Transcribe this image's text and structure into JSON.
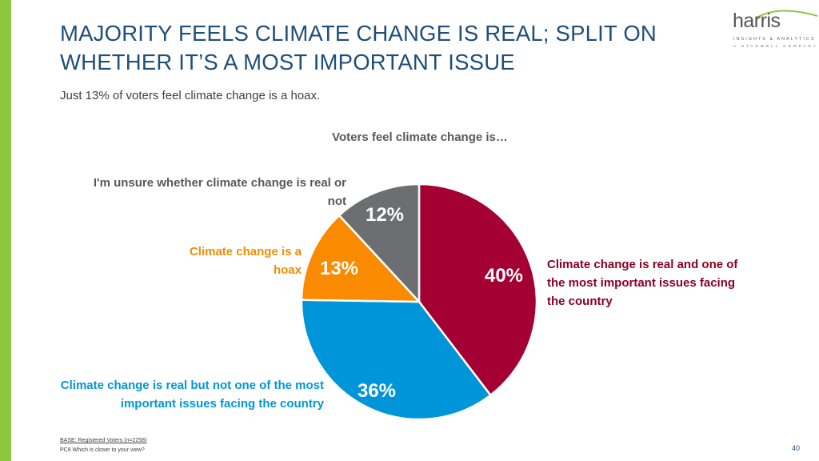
{
  "slide": {
    "title": "MAJORITY FEELS CLIMATE CHANGE IS REAL; SPLIT ON WHETHER IT’S A MOST IMPORTANT ISSUE",
    "subtitle": "Just 13% of voters feel climate change is a hoax.",
    "page_number": "40"
  },
  "logo": {
    "brand": "harris",
    "line1": "INSIGHTS & ANALYTICS",
    "line2": "A STAGWELL COMPANY"
  },
  "footnote": {
    "base": "BASE: Registered Voters (n=2258)",
    "question": "PC8 Which is closer to your view?"
  },
  "colors": {
    "accent_green": "#8dc63f",
    "title_blue": "#1f4e79"
  },
  "chart_data": {
    "type": "pie",
    "title": "Voters feel climate change is…",
    "slices": [
      {
        "label": "Climate change is real and one of the most important issues facing the country",
        "value": 40,
        "value_label": "40%",
        "color": "#a50034",
        "label_color": "#8b0023"
      },
      {
        "label": "Climate change is real but not one of the most important issues facing the country",
        "value": 36,
        "value_label": "36%",
        "color": "#0095d9",
        "label_color": "#0097d7"
      },
      {
        "label": "Climate change is a hoax",
        "value": 13,
        "value_label": "13%",
        "color": "#fa8a00",
        "label_color": "#f28c00"
      },
      {
        "label": "I'm unsure whether climate change is real or not",
        "value": 12,
        "value_label": "12%",
        "color": "#6d6e71",
        "label_color": "#595959"
      }
    ]
  }
}
